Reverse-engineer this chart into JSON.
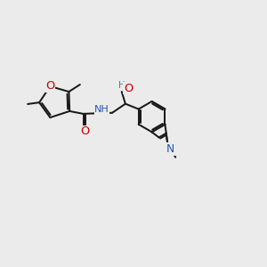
{
  "bg": "#ebebeb",
  "bc": "#1a1a1a",
  "oc": "#cc0000",
  "nc": "#2255bb",
  "hc": "#3a8888",
  "lw": 1.45,
  "fs": 7.8,
  "xlim": [
    0,
    10
  ],
  "ylim": [
    0,
    10
  ]
}
